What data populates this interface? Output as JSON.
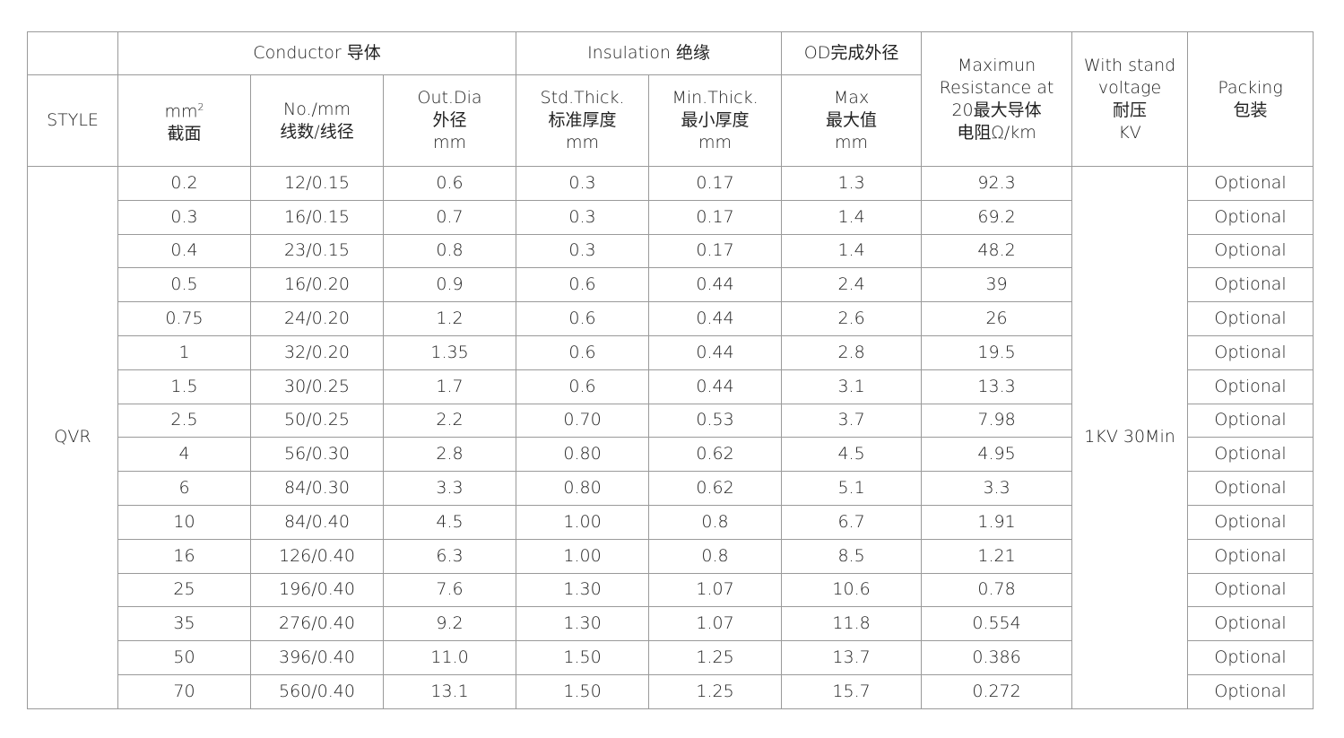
{
  "header": {
    "conductor": "Conductor 导体",
    "insulation": "Insulation 绝缘",
    "od": "OD完成外径",
    "style": "STYLE",
    "mm2": "mm",
    "mm2_sup": "2",
    "mm2_cn": "截面",
    "no_mm": "No./mm\n线数/线径",
    "out_dia": "Out.Dia\n外径\nmm",
    "std_thick": "Std.Thick.\n标准厚度\nmm",
    "min_thick": "Min.Thick.\n最小厚度\nmm",
    "max": "Max\n最大值\nmm",
    "resistance": "Maximun\nResistance at\n20最大导体\n电阻Ω/km",
    "voltage": "With stand\nvoltage\n耐压\nKV",
    "packing": "Packing\n包装"
  },
  "style_value": "QVR",
  "voltage_value": "1KV 30Min",
  "rows": [
    [
      "0.2",
      "12/0.15",
      "0.6",
      "0.3",
      "0.17",
      "1.3",
      "92.3",
      "Optional"
    ],
    [
      "0.3",
      "16/0.15",
      "0.7",
      "0.3",
      "0.17",
      "1.4",
      "69.2",
      "Optional"
    ],
    [
      "0.4",
      "23/0.15",
      "0.8",
      "0.3",
      "0.17",
      "1.4",
      "48.2",
      "Optional"
    ],
    [
      "0.5",
      "16/0.20",
      "0.9",
      "0.6",
      "0.44",
      "2.4",
      "39",
      "Optional"
    ],
    [
      "0.75",
      "24/0.20",
      "1.2",
      "0.6",
      "0.44",
      "2.6",
      "26",
      "Optional"
    ],
    [
      "1",
      "32/0.20",
      "1.35",
      "0.6",
      "0.44",
      "2.8",
      "19.5",
      "Optional"
    ],
    [
      "1.5",
      "30/0.25",
      "1.7",
      "0.6",
      "0.44",
      "3.1",
      "13.3",
      "Optional"
    ],
    [
      "2.5",
      "50/0.25",
      "2.2",
      "0.70",
      "0.53",
      "3.7",
      "7.98",
      "Optional"
    ],
    [
      "4",
      "56/0.30",
      "2.8",
      "0.80",
      "0.62",
      "4.5",
      "4.95",
      "Optional"
    ],
    [
      "6",
      "84/0.30",
      "3.3",
      "0.80",
      "0.62",
      "5.1",
      "3.3",
      "Optional"
    ],
    [
      "10",
      "84/0.40",
      "4.5",
      "1.00",
      "0.8",
      "6.7",
      "1.91",
      "Optional"
    ],
    [
      "16",
      "126/0.40",
      "6.3",
      "1.00",
      "0.8",
      "8.5",
      "1.21",
      "Optional"
    ],
    [
      "25",
      "196/0.40",
      "7.6",
      "1.30",
      "1.07",
      "10.6",
      "0.78",
      "Optional"
    ],
    [
      "35",
      "276/0.40",
      "9.2",
      "1.30",
      "1.07",
      "11.8",
      "0.554",
      "Optional"
    ],
    [
      "50",
      "396/0.40",
      "11.0",
      "1.50",
      "1.25",
      "13.7",
      "0.386",
      "Optional"
    ],
    [
      "70",
      "560/0.40",
      "13.1",
      "1.50",
      "1.25",
      "15.7",
      "0.272",
      "Optional"
    ]
  ]
}
